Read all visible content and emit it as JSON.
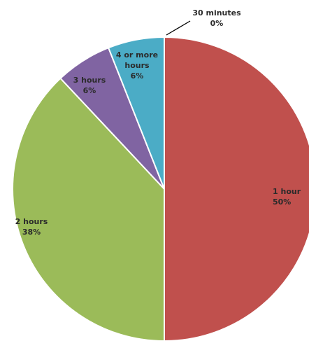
{
  "chart_data": {
    "type": "pie",
    "slices": [
      {
        "name": "30 minutes",
        "value": 0,
        "label_pct": "0%",
        "color": "#4472C4"
      },
      {
        "name": "1 hour",
        "value": 50,
        "label_pct": "50%",
        "color": "#C0504D"
      },
      {
        "name": "2 hours",
        "value": 38,
        "label_pct": "38%",
        "color": "#9BBB59"
      },
      {
        "name": "3 hours",
        "value": 6,
        "label_pct": "6%",
        "color": "#8064A2"
      },
      {
        "name": "4 or more hours",
        "value": 6,
        "label_pct": "6%",
        "color": "#4BACC6"
      }
    ]
  }
}
